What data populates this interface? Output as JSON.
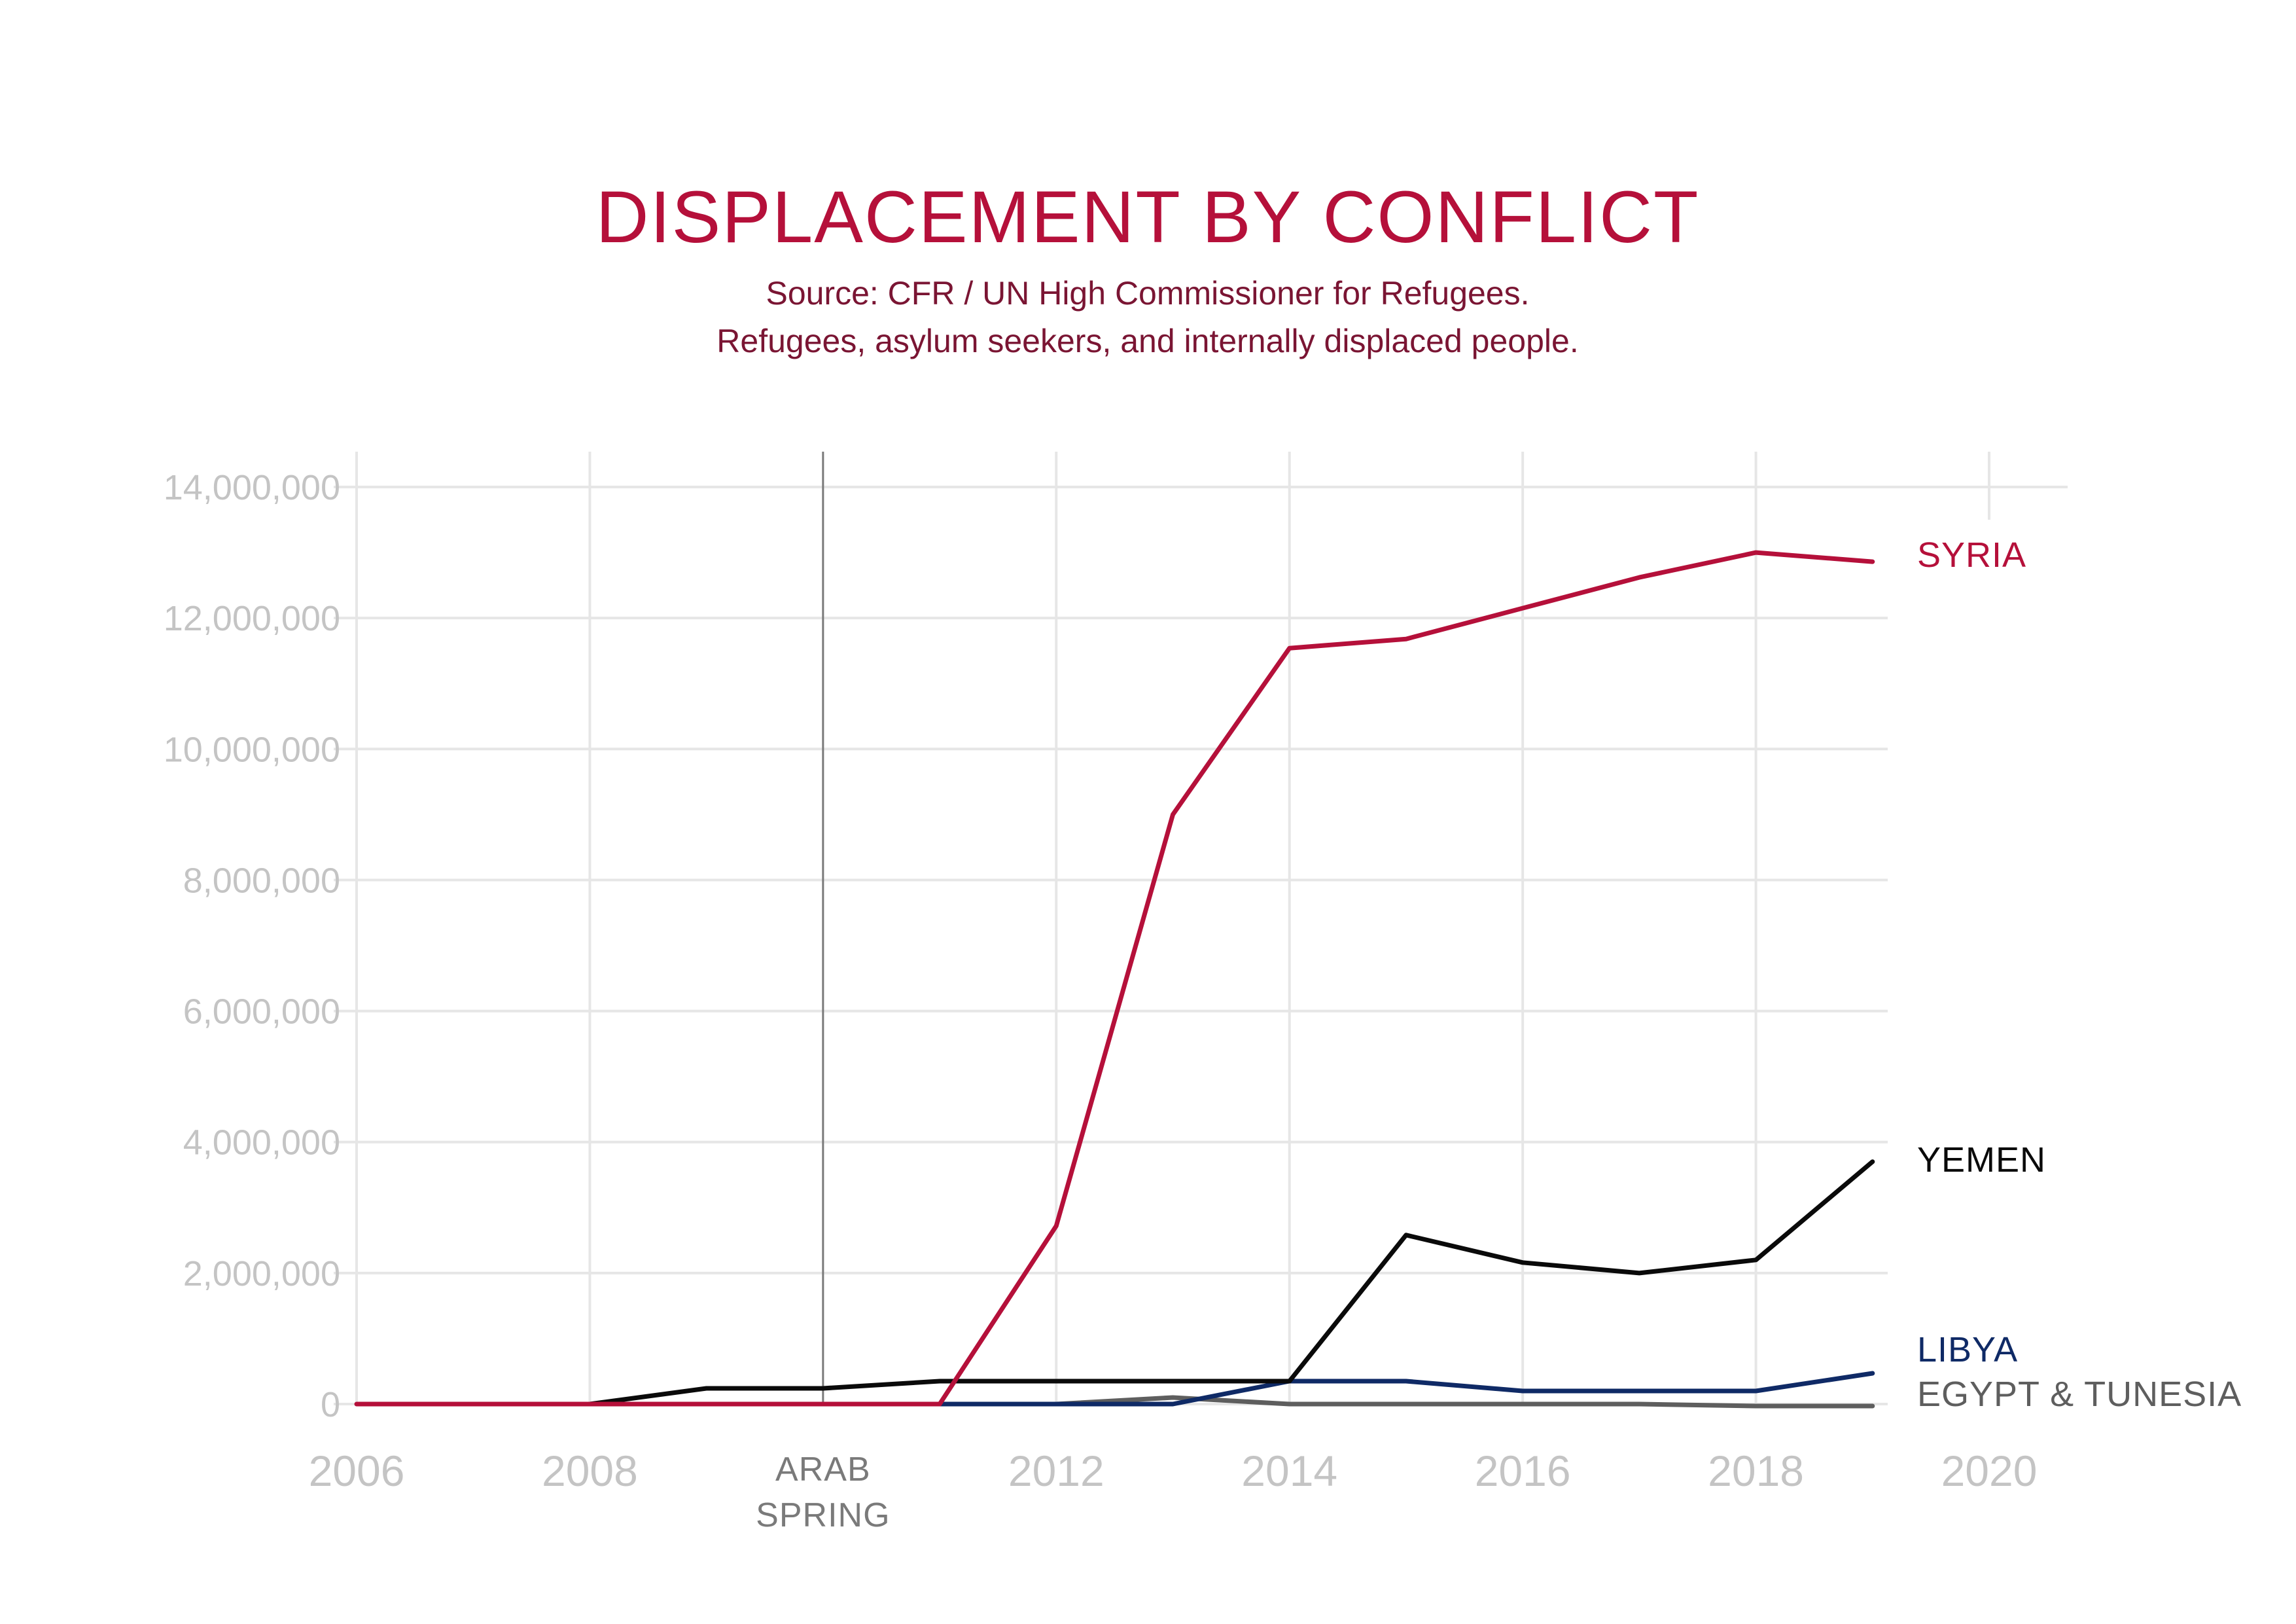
{
  "chart_data": {
    "type": "line",
    "title": "DISPLACEMENT BY CONFLICT",
    "subtitle_lines": [
      "Source: CFR / UN High Commissioner for Refugees.",
      "Refugees, asylum seekers, and internally displaced people."
    ],
    "xlabel": "",
    "ylabel": "",
    "xlim": [
      2006,
      2020
    ],
    "ylim": [
      0,
      14000000
    ],
    "x_ticks": [
      2006,
      2008,
      2012,
      2014,
      2016,
      2018,
      2020
    ],
    "x_tick_labels": [
      "2006",
      "2008",
      "2012",
      "2014",
      "2016",
      "2018",
      "2020"
    ],
    "y_ticks": [
      0,
      2000000,
      4000000,
      6000000,
      8000000,
      10000000,
      12000000,
      14000000
    ],
    "y_tick_labels": [
      "0",
      "2,000,000",
      "4,000,000",
      "6,000,000",
      "8,000,000",
      "10,000,000",
      "12,000,000",
      "14,000,000"
    ],
    "grid": true,
    "legend": "direct labels at line ends (right)",
    "annotations": [
      {
        "x": 2010,
        "label_lines": [
          "ARAB",
          "SPRING"
        ],
        "kind": "vertical-line"
      }
    ],
    "series": [
      {
        "name": "EGYPT & TUNESIA",
        "color": "#5e5e5e",
        "x": [
          2011,
          2012,
          2013,
          2014,
          2015,
          2016,
          2017,
          2018,
          2019
        ],
        "values": [
          0,
          0,
          100000,
          0,
          0,
          0,
          0,
          -30000,
          -30000
        ]
      },
      {
        "name": "LIBYA",
        "color": "#0f2a66",
        "x": [
          2011,
          2012,
          2013,
          2014,
          2015,
          2016,
          2017,
          2018,
          2019
        ],
        "values": [
          0,
          0,
          0,
          350000,
          350000,
          200000,
          200000,
          200000,
          470000
        ]
      },
      {
        "name": "YEMEN",
        "color": "#0a0a0a",
        "x": [
          2008,
          2009,
          2010,
          2011,
          2012,
          2013,
          2014,
          2015,
          2016,
          2017,
          2018,
          2019
        ],
        "values": [
          0,
          240000,
          240000,
          350000,
          350000,
          350000,
          350000,
          2580000,
          2160000,
          2000000,
          2200000,
          3700000
        ]
      },
      {
        "name": "SYRIA",
        "color": "#b5103a",
        "x": [
          2006,
          2007,
          2008,
          2009,
          2010,
          2011,
          2012,
          2013,
          2014,
          2015,
          2016,
          2017,
          2018,
          2019
        ],
        "values": [
          0,
          0,
          0,
          0,
          0,
          0,
          2720000,
          9000000,
          11540000,
          11680000,
          12150000,
          12620000,
          13000000,
          12860000
        ]
      }
    ]
  }
}
